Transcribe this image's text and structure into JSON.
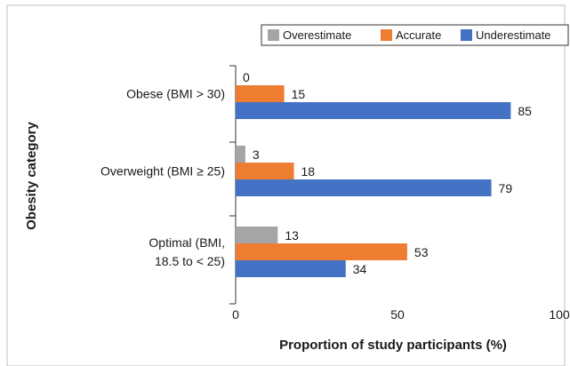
{
  "chart_data": {
    "type": "bar",
    "orientation": "horizontal",
    "ylabel": "Obesity category",
    "xlabel": "Proportion of study participants (%)",
    "xlim": [
      0,
      100
    ],
    "xticks": [
      "0",
      "50",
      "100"
    ],
    "grid": false,
    "legend_position": "top-right",
    "categories": [
      {
        "lines": [
          "Obese (BMI > 30)"
        ]
      },
      {
        "lines": [
          "Overweight (BMI ≥ 25)"
        ]
      },
      {
        "lines": [
          "Optimal (BMI,",
          "18.5 to < 25)"
        ]
      }
    ],
    "series": [
      {
        "name": "Overestimate",
        "color": "#a5a5a5",
        "values": [
          0,
          3,
          13
        ],
        "labels": [
          "0",
          "3",
          "13"
        ]
      },
      {
        "name": "Accurate",
        "color": "#ed7d31",
        "values": [
          15,
          18,
          53
        ],
        "labels": [
          "15",
          "18",
          "53"
        ]
      },
      {
        "name": "Underestimate",
        "color": "#4472c4",
        "values": [
          85,
          79,
          34
        ],
        "labels": [
          "85",
          "79",
          "34"
        ]
      }
    ]
  }
}
